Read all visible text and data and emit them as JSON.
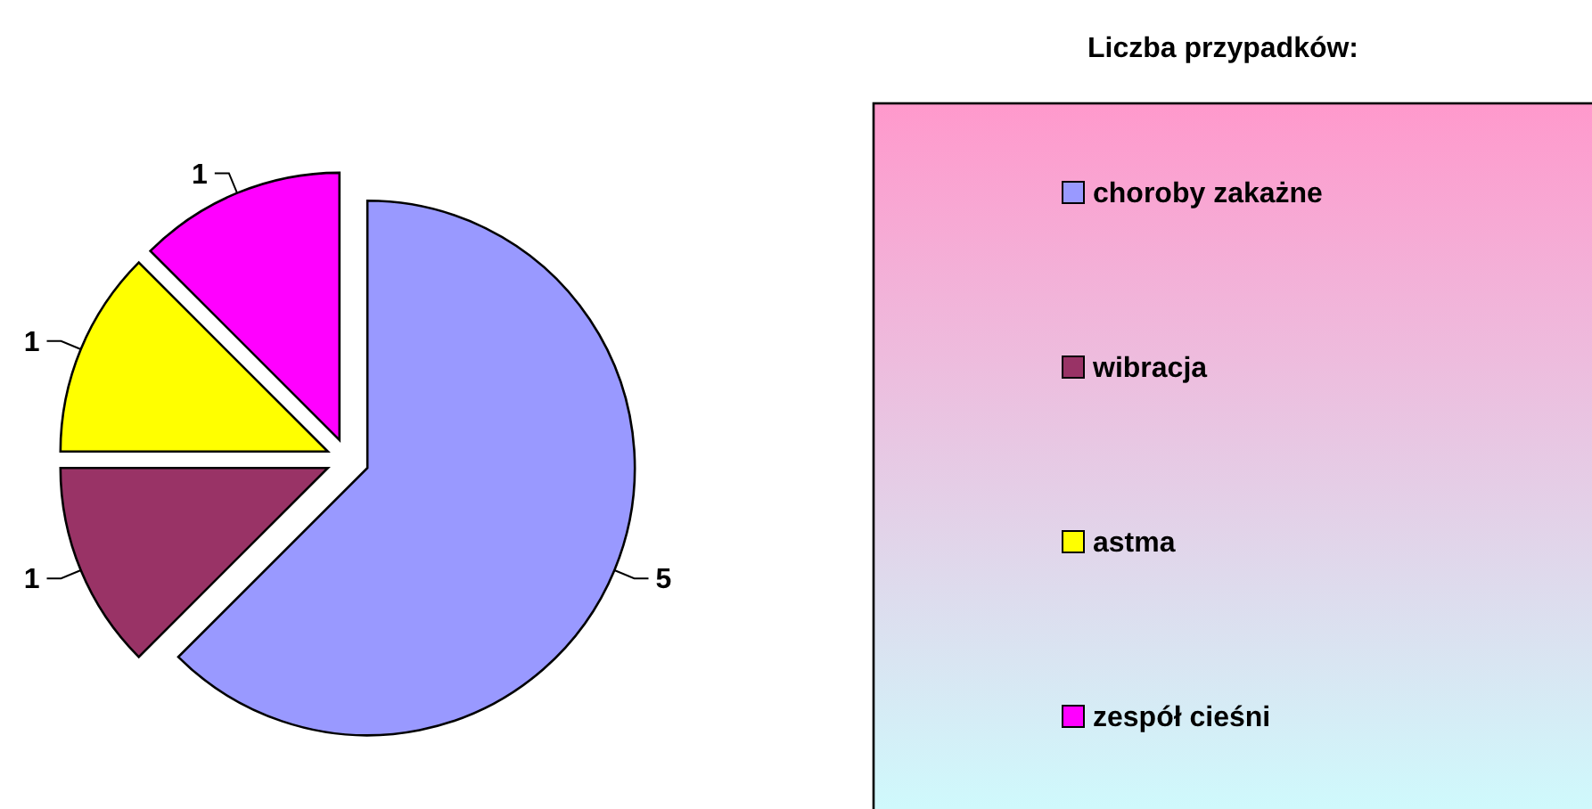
{
  "chart_data": {
    "type": "pie",
    "legend_title": "Liczba przypadków:",
    "categories": [
      "choroby zakażne",
      "wibracja",
      "astma",
      "zespół cieśni"
    ],
    "values": [
      5,
      1,
      1,
      1
    ],
    "colors": [
      "#9999ff",
      "#993366",
      "#ffff00",
      "#ff00ff"
    ],
    "data_labels": true,
    "legend": "right"
  }
}
